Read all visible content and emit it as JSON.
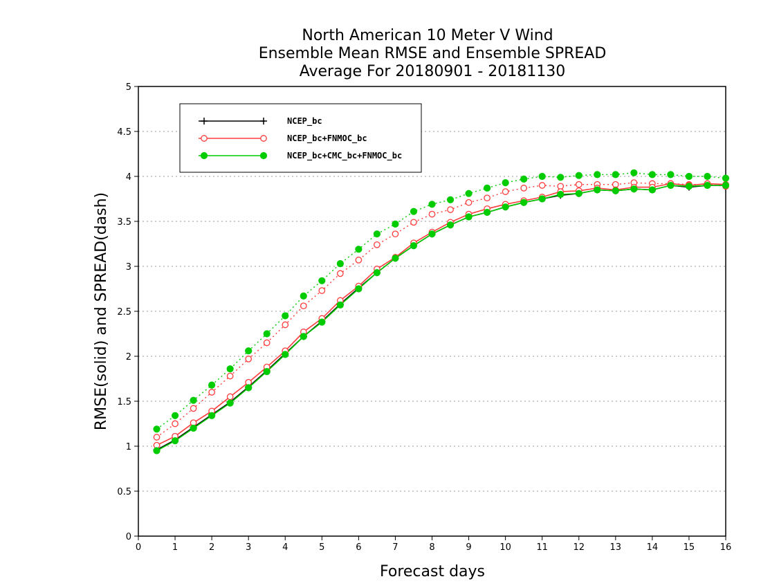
{
  "chart_data": {
    "type": "line",
    "title": [
      "North American 10 Meter V Wind",
      "Ensemble Mean RMSE and Ensemble SPREAD",
      "Average For 20180901 - 20181130"
    ],
    "xlabel": "Forecast days",
    "ylabel": "RMSE(solid) and SPREAD(dash)",
    "xlim": [
      0,
      16
    ],
    "ylim": [
      0,
      5
    ],
    "xticks": [
      "0",
      "1",
      "2",
      "3",
      "4",
      "5",
      "6",
      "7",
      "8",
      "9",
      "10",
      "11",
      "12",
      "13",
      "14",
      "15",
      "16"
    ],
    "yticks": [
      "0",
      "0.5",
      "1",
      "1.5",
      "2",
      "2.5",
      "3",
      "3.5",
      "4",
      "4.5",
      "5"
    ],
    "grid": true,
    "legend_position": "top-left",
    "x": [
      0.5,
      1,
      1.5,
      2,
      2.5,
      3,
      3.5,
      4,
      4.5,
      5,
      5.5,
      6,
      6.5,
      7,
      7.5,
      8,
      8.5,
      9,
      9.5,
      10,
      10.5,
      11,
      11.5,
      12,
      12.5,
      13,
      13.5,
      14,
      14.5,
      15,
      15.5,
      16
    ],
    "series": [
      {
        "name": "NCEP_bc",
        "color": "#000000",
        "marker": "plus",
        "rmse": [
          0.96,
          1.07,
          1.21,
          1.35,
          1.49,
          1.66,
          1.84,
          2.03,
          2.22,
          2.39,
          2.58,
          2.76,
          2.93,
          3.09,
          3.23,
          3.36,
          3.46,
          3.55,
          3.6,
          3.66,
          3.71,
          3.75,
          3.79,
          3.81,
          3.85,
          3.84,
          3.86,
          3.85,
          3.9,
          3.88,
          3.9,
          3.9
        ],
        "spread": null
      },
      {
        "name": "NCEP_bc+FNMOC_bc",
        "color": "#ff3b3b",
        "marker": "open-circle",
        "rmse": [
          1.01,
          1.11,
          1.26,
          1.39,
          1.55,
          1.71,
          1.88,
          2.06,
          2.27,
          2.42,
          2.62,
          2.78,
          2.97,
          3.1,
          3.26,
          3.38,
          3.49,
          3.58,
          3.64,
          3.69,
          3.73,
          3.77,
          3.83,
          3.84,
          3.87,
          3.85,
          3.88,
          3.88,
          3.92,
          3.9,
          3.92,
          3.91
        ],
        "spread": [
          1.1,
          1.25,
          1.42,
          1.6,
          1.78,
          1.97,
          2.15,
          2.35,
          2.56,
          2.73,
          2.92,
          3.07,
          3.24,
          3.36,
          3.49,
          3.58,
          3.63,
          3.71,
          3.76,
          3.83,
          3.87,
          3.9,
          3.89,
          3.91,
          3.91,
          3.91,
          3.93,
          3.92,
          3.92,
          3.91,
          3.91,
          3.89
        ]
      },
      {
        "name": "NCEP_bc+CMC_bc+FNMOC_bc",
        "color": "#00cc00",
        "marker": "filled-circle",
        "rmse": [
          0.95,
          1.06,
          1.2,
          1.34,
          1.48,
          1.65,
          1.83,
          2.02,
          2.22,
          2.38,
          2.57,
          2.75,
          2.93,
          3.09,
          3.23,
          3.36,
          3.46,
          3.55,
          3.6,
          3.66,
          3.71,
          3.75,
          3.8,
          3.81,
          3.85,
          3.84,
          3.86,
          3.85,
          3.9,
          3.89,
          3.9,
          3.9
        ],
        "spread": [
          1.19,
          1.34,
          1.51,
          1.68,
          1.86,
          2.06,
          2.25,
          2.45,
          2.67,
          2.84,
          3.03,
          3.19,
          3.36,
          3.47,
          3.61,
          3.69,
          3.74,
          3.81,
          3.87,
          3.93,
          3.97,
          4.0,
          3.99,
          4.01,
          4.02,
          4.02,
          4.04,
          4.02,
          4.02,
          4.0,
          4.0,
          3.98
        ]
      }
    ]
  }
}
